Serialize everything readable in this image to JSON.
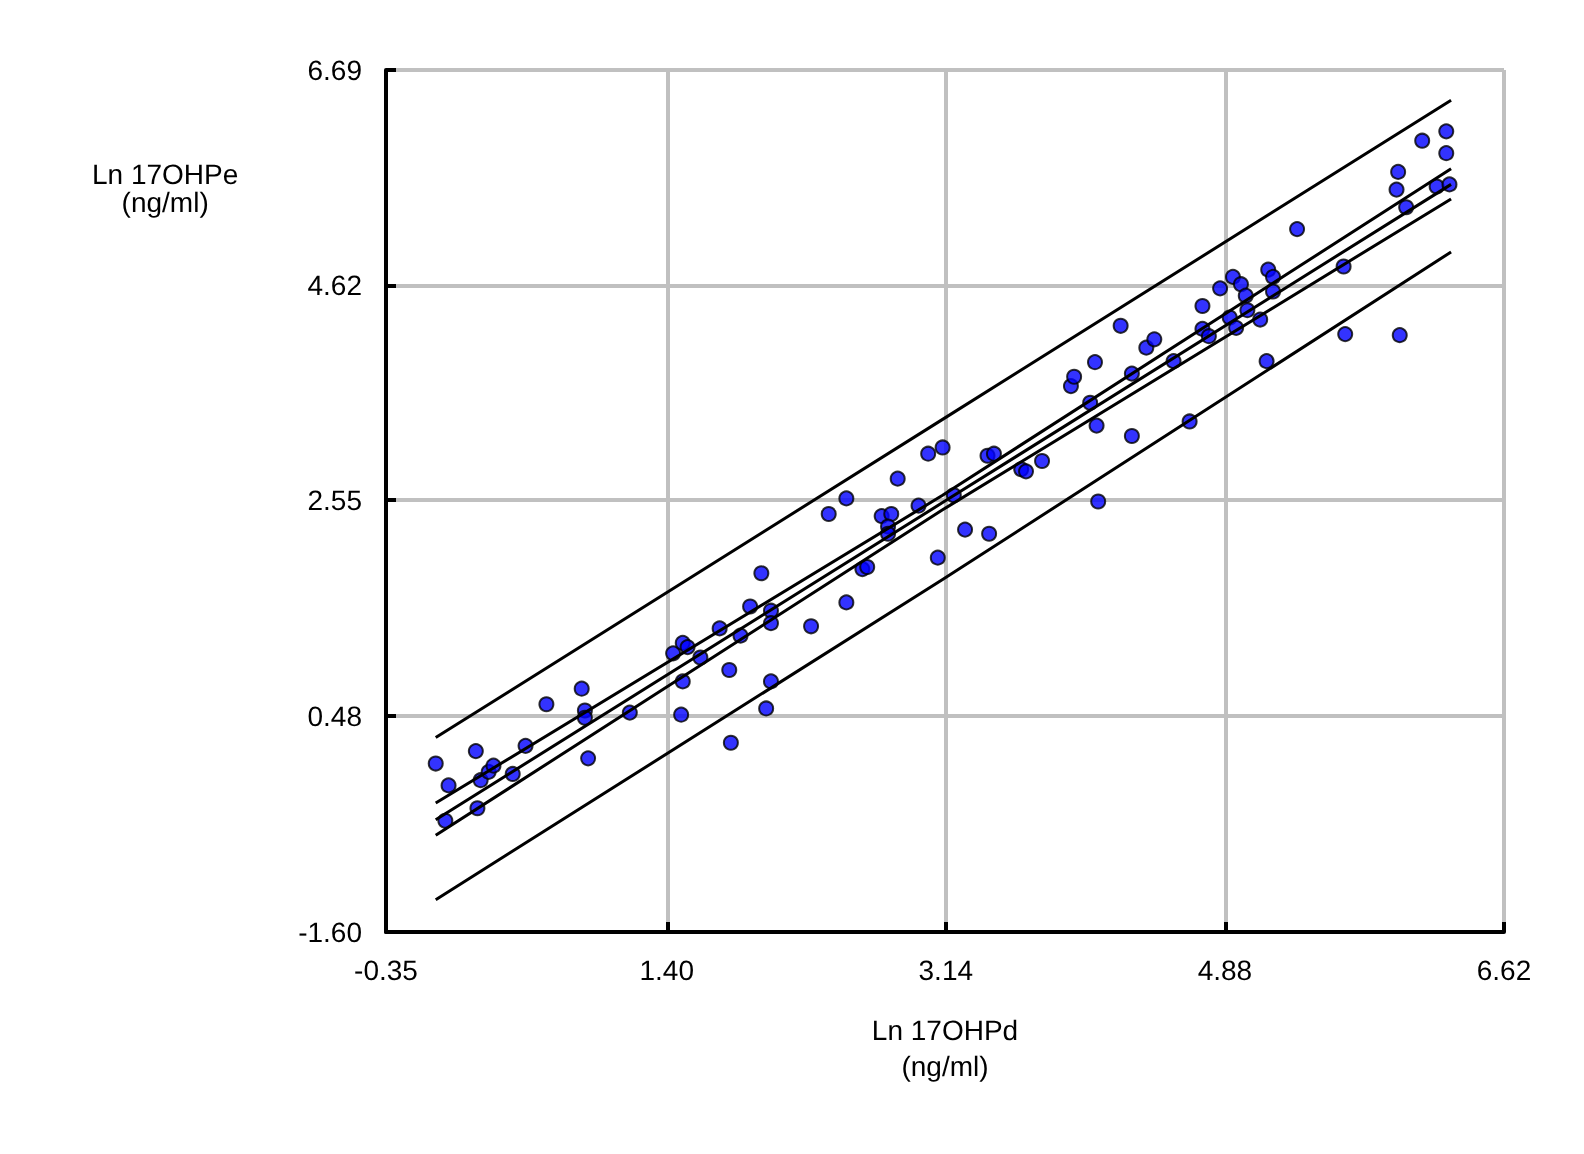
{
  "chart_data": {
    "type": "scatter",
    "xlabel": "Ln 17OHPd\n(ng/ml)",
    "ylabel": "Ln 17OHPe\n(ng/ml)",
    "xlim": [
      -0.35,
      6.62
    ],
    "xticks": [
      -0.35,
      {
        "value": 1.4,
        "label": "1.40"
      },
      3.14,
      4.88,
      6.62
    ],
    "ylim": [
      -1.6,
      6.69
    ],
    "yticks": [
      {
        "value": -1.6,
        "label": "-1.60"
      },
      0.48,
      2.55,
      4.62,
      6.69
    ],
    "grid": true,
    "series": [
      {
        "color": "#0000ff",
        "marker": "circle",
        "x": [
          -0.04,
          0.04,
          0.02,
          0.21,
          0.24,
          0.29,
          0.32,
          0.22,
          0.44,
          0.52,
          0.65,
          0.87,
          0.89,
          0.89,
          0.91,
          1.17,
          1.44,
          1.5,
          1.53,
          1.5,
          1.49,
          1.61,
          1.73,
          1.79,
          1.8,
          1.86,
          1.92,
          1.99,
          2.05,
          2.05,
          2.05,
          2.02,
          2.3,
          2.41,
          2.52,
          2.52,
          2.62,
          2.65,
          2.74,
          2.8,
          2.78,
          2.78,
          2.84,
          2.97,
          3.03,
          3.12,
          3.09,
          3.19,
          3.26,
          3.4,
          3.44,
          3.41,
          3.61,
          3.64,
          3.74,
          3.92,
          3.94,
          4.07,
          4.04,
          4.08,
          4.09,
          4.23,
          4.3,
          4.3,
          4.39,
          4.44,
          4.56,
          4.66,
          4.74,
          4.74,
          4.78,
          4.85,
          4.93,
          4.98,
          5.01,
          4.91,
          4.95,
          5.02,
          5.1,
          5.14,
          5.15,
          5.18,
          5.18,
          5.33,
          5.62,
          5.63,
          5.97,
          5.95,
          5.96,
          6.01,
          6.11,
          6.26,
          6.26,
          6.2,
          6.28
        ],
        "values": [
          0.02,
          -0.19,
          -0.53,
          0.14,
          -0.14,
          -0.06,
          0.0,
          -0.41,
          -0.08,
          0.19,
          0.59,
          0.74,
          0.53,
          0.46,
          0.07,
          0.51,
          1.08,
          1.18,
          1.14,
          0.81,
          0.49,
          1.04,
          1.32,
          0.92,
          0.22,
          1.25,
          1.53,
          1.85,
          1.49,
          1.37,
          0.81,
          0.55,
          1.34,
          2.42,
          2.57,
          1.57,
          1.89,
          1.91,
          2.4,
          2.42,
          2.3,
          2.23,
          2.76,
          2.5,
          3.0,
          3.06,
          2.0,
          2.6,
          2.27,
          2.98,
          3.0,
          2.23,
          2.85,
          2.83,
          2.93,
          3.65,
          3.74,
          3.88,
          3.49,
          3.27,
          2.54,
          4.23,
          3.77,
          3.17,
          4.02,
          4.1,
          3.89,
          3.31,
          4.42,
          4.2,
          4.13,
          4.59,
          4.7,
          4.63,
          4.52,
          4.31,
          4.21,
          4.38,
          4.29,
          3.89,
          4.77,
          4.7,
          4.56,
          5.16,
          4.8,
          4.15,
          4.14,
          5.54,
          5.71,
          5.37,
          6.01,
          6.1,
          5.89,
          5.57,
          5.59
        ]
      },
      {
        "type": "line",
        "color": "#000000",
        "marker": "none",
        "line_style": "solid",
        "x": [
          -0.04,
          3.12,
          6.29
        ],
        "values": [
          -0.52,
          2.53,
          5.59
        ]
      },
      {
        "type": "line",
        "color": "#000000",
        "marker": "none",
        "line_style": "solid",
        "x": [
          -0.04,
          3.12,
          6.29
        ],
        "values": [
          -0.36,
          2.6,
          5.74
        ]
      },
      {
        "type": "line",
        "color": "#000000",
        "marker": "none",
        "line_style": "solid",
        "x": [
          -0.04,
          3.12,
          6.29
        ],
        "values": [
          -0.67,
          2.46,
          5.45
        ]
      },
      {
        "type": "line",
        "color": "#000000",
        "marker": "none",
        "line_style": "solid",
        "x": [
          -0.04,
          3.12,
          6.29
        ],
        "values": [
          0.27,
          3.33,
          6.4
        ]
      },
      {
        "type": "line",
        "color": "#000000",
        "marker": "none",
        "line_style": "solid",
        "x": [
          -0.04,
          3.12,
          6.29
        ],
        "values": [
          -1.29,
          1.79,
          4.94
        ]
      }
    ]
  }
}
